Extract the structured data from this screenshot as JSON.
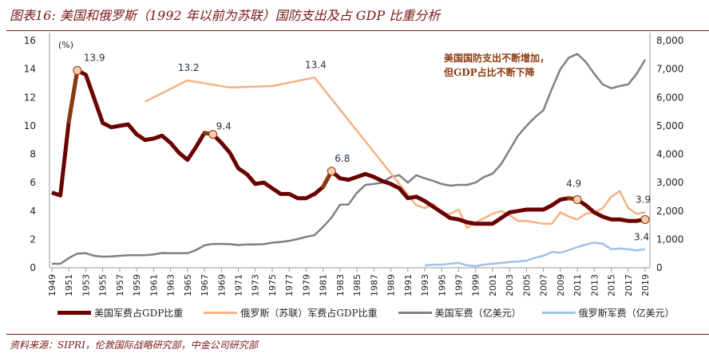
{
  "title": "图表16: 美国和俄罗斯（1992 年以前为苏联）国防支出及占 GDP 比重分析",
  "source": "资料来源：SIPRI，伦敦国际战略研究部，中金公司研究部",
  "chart_data": {
    "type": "line",
    "title": "图表16: 美国和俄罗斯（1992 年以前为苏联）国防支出及占 GDP 比重分析",
    "y_left_label": "(%)",
    "y_left_range": [
      0,
      16
    ],
    "y_left_ticks": [
      "0",
      "2",
      "4",
      "6",
      "8",
      "10",
      "12",
      "14",
      "16"
    ],
    "y_right_range": [
      0,
      8000
    ],
    "y_right_ticks": [
      "0",
      "1,000",
      "2,000",
      "3,000",
      "4,000",
      "5,000",
      "6,000",
      "7,000",
      "8,000"
    ],
    "x_range": [
      1949,
      2019
    ],
    "x_ticks": [
      "1949",
      "1951",
      "1953",
      "1955",
      "1957",
      "1959",
      "1961",
      "1963",
      "1965",
      "1967",
      "1969",
      "1971",
      "1973",
      "1975",
      "1977",
      "1979",
      "1981",
      "1983",
      "1985",
      "1987",
      "1989",
      "1991",
      "1993",
      "1995",
      "1997",
      "1999",
      "2001",
      "2003",
      "2005",
      "2007",
      "2009",
      "2011",
      "2013",
      "2015",
      "2017",
      "2019"
    ],
    "legend_position": "bottom",
    "annotation": [
      "美国国防支出不断增加，",
      "但GDP占比不断下降"
    ],
    "annotation_color": "#8b3a0f",
    "series": [
      {
        "name": "美国军费占GDP比重",
        "axis": "left",
        "color": "#6b0000",
        "highlight_color": "#8b3a0f",
        "x": [
          1949,
          1950,
          1951,
          1952,
          1953,
          1954,
          1955,
          1956,
          1957,
          1958,
          1959,
          1960,
          1961,
          1962,
          1963,
          1964,
          1965,
          1966,
          1967,
          1968,
          1969,
          1970,
          1971,
          1972,
          1973,
          1974,
          1975,
          1976,
          1977,
          1978,
          1979,
          1980,
          1981,
          1982,
          1983,
          1984,
          1985,
          1986,
          1987,
          1988,
          1989,
          1990,
          1991,
          1992,
          1993,
          1994,
          1995,
          1996,
          1997,
          1998,
          1999,
          2000,
          2001,
          2002,
          2003,
          2004,
          2005,
          2006,
          2007,
          2008,
          2009,
          2010,
          2011,
          2012,
          2013,
          2014,
          2015,
          2016,
          2017,
          2018,
          2019
        ],
        "y": [
          5.3,
          5.1,
          10.3,
          13.9,
          13.6,
          11.9,
          10.2,
          9.9,
          10.0,
          10.1,
          9.4,
          9.0,
          9.1,
          9.3,
          8.8,
          8.1,
          7.6,
          8.5,
          9.5,
          9.4,
          8.8,
          8.1,
          7.0,
          6.6,
          5.9,
          6.0,
          5.6,
          5.2,
          5.2,
          4.9,
          4.9,
          5.2,
          5.7,
          6.8,
          6.3,
          6.2,
          6.4,
          6.6,
          6.4,
          6.1,
          5.9,
          5.6,
          4.9,
          5.0,
          4.7,
          4.3,
          3.9,
          3.5,
          3.4,
          3.2,
          3.1,
          3.1,
          3.1,
          3.5,
          3.9,
          4.0,
          4.1,
          4.1,
          4.1,
          4.4,
          4.8,
          4.9,
          4.8,
          4.4,
          3.9,
          3.6,
          3.4,
          3.4,
          3.3,
          3.3,
          3.4
        ],
        "highlight_segments": [
          [
            1951,
            1952
          ],
          [
            1967,
            1968
          ],
          [
            1981,
            1982
          ],
          [
            2010,
            2011
          ]
        ],
        "labeled_points": [
          {
            "x": 1952,
            "label": "13.9"
          },
          {
            "x": 1968,
            "label": "9.4"
          },
          {
            "x": 1982,
            "label": "6.8"
          },
          {
            "x": 2011,
            "label": "4.9"
          },
          {
            "x": 2019,
            "label": "3.4"
          }
        ]
      },
      {
        "name": "俄罗斯（苏联）军费占GDP比重",
        "axis": "left",
        "color": "#f4b183",
        "x": [
          1960,
          1965,
          1970,
          1975,
          1980,
          1992,
          1993,
          1994,
          1995,
          1996,
          1997,
          1998,
          1999,
          2000,
          2001,
          2002,
          2003,
          2004,
          2005,
          2006,
          2007,
          2008,
          2009,
          2010,
          2011,
          2012,
          2013,
          2014,
          2015,
          2016,
          2017,
          2018,
          2019
        ],
        "y": [
          11.7,
          13.2,
          12.7,
          12.8,
          13.4,
          4.4,
          4.2,
          4.5,
          3.8,
          3.8,
          4.1,
          2.8,
          3.2,
          3.5,
          3.8,
          4.0,
          3.7,
          3.3,
          3.3,
          3.2,
          3.1,
          3.1,
          3.9,
          3.6,
          3.4,
          3.8,
          3.9,
          4.2,
          5.0,
          5.4,
          4.2,
          3.8,
          3.9
        ],
        "labeled_points": [
          {
            "x": 1965,
            "label": "13.2"
          },
          {
            "x": 1980,
            "label": "13.4"
          },
          {
            "x": 2019,
            "label": "3.9"
          }
        ]
      },
      {
        "name": "美国军费（亿美元）",
        "axis": "right",
        "color": "#808080",
        "x": [
          1949,
          1950,
          1951,
          1952,
          1953,
          1954,
          1955,
          1956,
          1957,
          1958,
          1959,
          1960,
          1961,
          1962,
          1963,
          1964,
          1965,
          1966,
          1967,
          1968,
          1969,
          1970,
          1971,
          1972,
          1973,
          1974,
          1975,
          1976,
          1977,
          1978,
          1979,
          1980,
          1981,
          1982,
          1983,
          1984,
          1985,
          1986,
          1987,
          1988,
          1989,
          1990,
          1991,
          1992,
          1993,
          1994,
          1995,
          1996,
          1997,
          1998,
          1999,
          2000,
          2001,
          2002,
          2003,
          2004,
          2005,
          2006,
          2007,
          2008,
          2009,
          2010,
          2011,
          2012,
          2013,
          2014,
          2015,
          2016,
          2017,
          2018,
          2019
        ],
        "y": [
          140,
          140,
          340,
          500,
          510,
          420,
          390,
          400,
          420,
          440,
          440,
          440,
          470,
          520,
          510,
          510,
          510,
          620,
          790,
          840,
          840,
          830,
          800,
          820,
          820,
          830,
          880,
          910,
          950,
          1010,
          1090,
          1150,
          1440,
          1770,
          2220,
          2230,
          2640,
          2920,
          2950,
          3000,
          3200,
          3260,
          3000,
          3260,
          3150,
          3060,
          2950,
          2890,
          2920,
          2920,
          3000,
          3200,
          3310,
          3650,
          4150,
          4650,
          5000,
          5300,
          5550,
          6300,
          7000,
          7400,
          7530,
          7250,
          6830,
          6460,
          6320,
          6400,
          6460,
          6830,
          7330
        ]
      },
      {
        "name": "俄罗斯军费（亿美元）",
        "axis": "right",
        "color": "#9dc3e6",
        "x": [
          1993,
          1994,
          1995,
          1996,
          1997,
          1998,
          1999,
          2000,
          2001,
          2002,
          2003,
          2004,
          2005,
          2006,
          2007,
          2008,
          2009,
          2010,
          2011,
          2012,
          2013,
          2014,
          2015,
          2016,
          2017,
          2018,
          2019
        ],
        "y": [
          80,
          110,
          110,
          140,
          170,
          80,
          60,
          110,
          140,
          170,
          200,
          220,
          250,
          350,
          420,
          560,
          530,
          620,
          730,
          820,
          880,
          850,
          650,
          680,
          650,
          610,
          650
        ]
      }
    ]
  }
}
